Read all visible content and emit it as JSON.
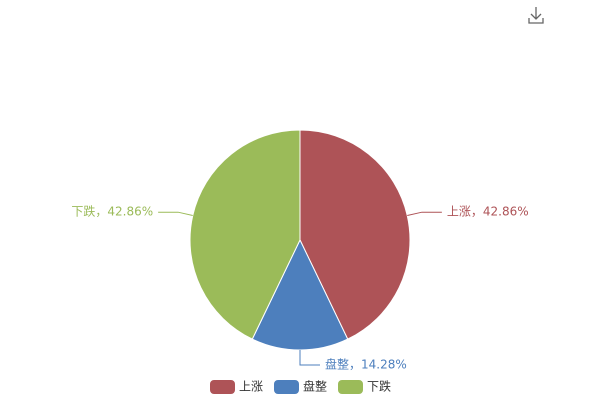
{
  "chart_data": {
    "type": "pie",
    "categories": [
      "上涨",
      "盘整",
      "下跌"
    ],
    "values": [
      42.86,
      14.28,
      42.86
    ],
    "value_labels": [
      "上涨，42.86%",
      "盘整，14.28%",
      "下跌，42.86%"
    ],
    "colors": [
      "#ae5357",
      "#4d7fbd",
      "#9bbb59"
    ],
    "legend": "bottom"
  }
}
